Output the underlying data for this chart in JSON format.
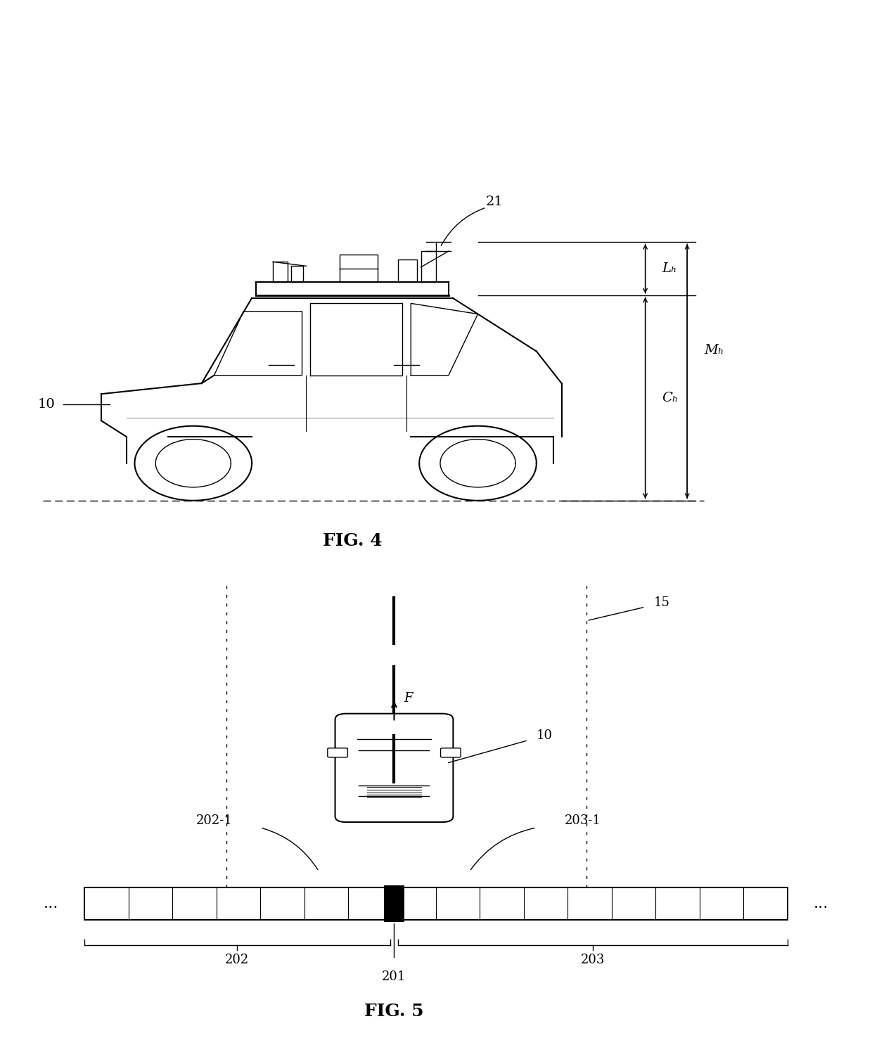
{
  "fig4": {
    "title": "FIG. 4",
    "label_21": "21",
    "label_10_side": "10",
    "label_Lh": "Lₕ",
    "label_Mh": "Mₕ",
    "label_Ch": "Cₕ"
  },
  "fig5": {
    "title": "FIG. 5",
    "label_15": "15",
    "label_10_top": "10",
    "label_F": "F",
    "label_202_1": "202-1",
    "label_203_1": "203-1",
    "label_202": "202",
    "label_201": "201",
    "label_203": "203",
    "label_dots_left": "...",
    "label_dots_right": "..."
  },
  "bg_color": "#ffffff",
  "line_color": "#000000"
}
